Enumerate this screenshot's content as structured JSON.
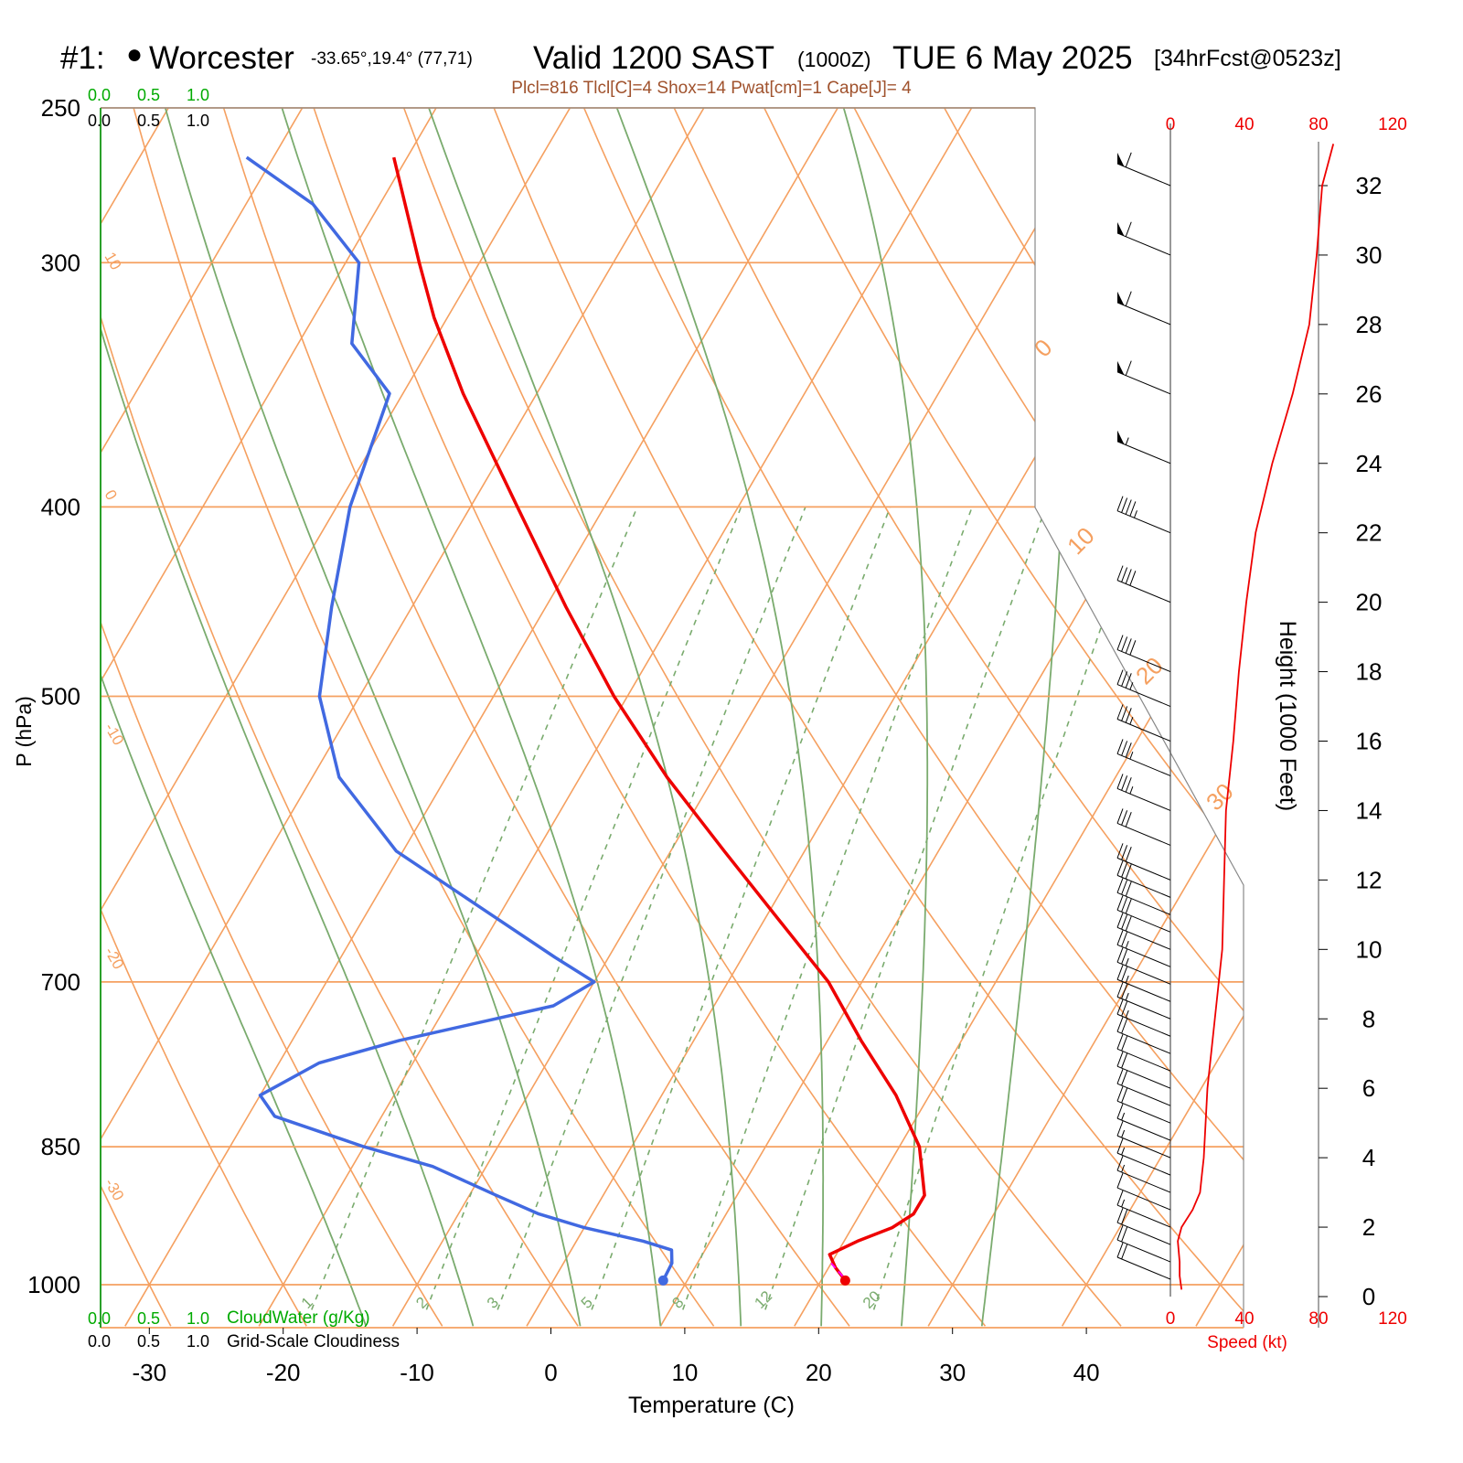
{
  "header": {
    "station_number": "#1:",
    "station_name": "Worcester",
    "coords": "-33.65°,19.4° (77,71)",
    "valid_label": "Valid 1200 SAST",
    "utc": "(1000Z)",
    "date": "TUE 6 May 2025",
    "forecast": "[34hrFcst@0523z]",
    "indices": "Plcl=816 Tlcl[C]=4 Shox=14 Pwat[cm]=1 Cape[J]= 4"
  },
  "colors": {
    "temperature": "#ee0000",
    "dewpoint": "#4169e1",
    "isotherm": "#f5a060",
    "dry_adiabat": "#f5a060",
    "moist_adiabat": "#7aab6e",
    "mixing_ratio": "#7aab6e",
    "cloudwater": "#00aa00",
    "indices_text": "#a0522d",
    "parcel": "#ff00ff",
    "wind_speed": "#ee0000"
  },
  "chart_data": {
    "type": "line",
    "title": "",
    "xlabel": "Temperature (C)",
    "ylabel": "P (hPa)",
    "y2label": "Height (1000 Feet)",
    "xlim": [
      -34,
      48
    ],
    "ylim": [
      1030,
      250
    ],
    "pressure_labels": [
      "250",
      "300",
      "400",
      "500",
      "700",
      "850",
      "1000"
    ],
    "pressure_levels": [
      250,
      300,
      400,
      500,
      700,
      850,
      1000
    ],
    "temperature_ticks": [
      "-30",
      "-20",
      "-10",
      "0",
      "10",
      "20",
      "30",
      "40"
    ],
    "temperature_tick_values": [
      -30,
      -20,
      -10,
      0,
      10,
      20,
      30,
      40
    ],
    "height_ticks": [
      "0",
      "2",
      "4",
      "6",
      "8",
      "10",
      "12",
      "14",
      "16",
      "18",
      "20",
      "22",
      "24",
      "26",
      "28",
      "30",
      "32"
    ],
    "isotherm_labels": [
      "10",
      "0",
      "-10",
      "-20",
      "-30"
    ],
    "dry_adiabat_labels": [
      "0",
      "10",
      "20",
      "30"
    ],
    "mixing_ratio_labels": [
      "1",
      "2",
      "3",
      "5",
      "8",
      "12",
      "20"
    ],
    "mixing_ratio_values": [
      1,
      2,
      3,
      5,
      8,
      12,
      20
    ],
    "series": [
      {
        "name": "Temperature",
        "pressure": [
          995,
          980,
          965,
          950,
          935,
          920,
          900,
          850,
          800,
          750,
          700,
          650,
          600,
          550,
          500,
          450,
          400,
          350,
          320,
          300,
          265
        ],
        "values": [
          21.8,
          20.5,
          19.5,
          21.0,
          23.0,
          24.0,
          24.0,
          21.5,
          17.5,
          12.5,
          7.5,
          1.0,
          -6.0,
          -13.5,
          -21.0,
          -28.5,
          -36.5,
          -45.5,
          -51.0,
          -54.5,
          -61.0
        ]
      },
      {
        "name": "Dewpoint",
        "pressure": [
          995,
          975,
          960,
          950,
          935,
          920,
          900,
          870,
          850,
          820,
          800,
          770,
          750,
          720,
          700,
          680,
          640,
          600,
          550,
          500,
          450,
          400,
          350,
          330,
          300,
          280,
          265
        ],
        "values": [
          8.2,
          8.1,
          7.5,
          5.0,
          0.0,
          -4.0,
          -8.0,
          -14.0,
          -20.0,
          -28.0,
          -30.0,
          -27.0,
          -22.0,
          -12.0,
          -10.0,
          -14.0,
          -22.0,
          -30.5,
          -38.0,
          -43.0,
          -46.0,
          -49.0,
          -51.0,
          -56.0,
          -59.0,
          -65.0,
          -72.0
        ]
      },
      {
        "name": "Wind Speed (kt)",
        "height_kft": [
          0.2,
          0.6,
          1.0,
          1.6,
          2.0,
          2.5,
          3.0,
          3.5,
          4.0,
          6.0,
          8.0,
          10.0,
          12.0,
          14.0,
          16.0,
          18.0,
          20.0,
          22.0,
          24.0,
          26.0,
          28.0,
          30.0,
          32.0,
          33.2
        ],
        "values": [
          6,
          5,
          5,
          4,
          6,
          12,
          16,
          17,
          18,
          20,
          24,
          28,
          29,
          30,
          34,
          37,
          41,
          46,
          55,
          66,
          75,
          79,
          82,
          88
        ]
      }
    ],
    "wind_scale": {
      "ticks": [
        "0",
        "40",
        "80",
        "120"
      ],
      "tick_values": [
        0,
        40,
        80,
        120
      ],
      "label": "Speed (kt)"
    },
    "cloud_scale": {
      "cloudwater_ticks": [
        "0.0",
        "0.5",
        "1.0"
      ],
      "cloudiness_ticks": [
        "0.0",
        "0.5",
        "1.0"
      ],
      "cloudwater_label": "CloudWater (g/Kg)",
      "cloudiness_label": "Grid-Scale Cloudiness"
    },
    "wind_barbs": {
      "height_kft": [
        0.5,
        1.0,
        1.5,
        2.0,
        2.5,
        3.0,
        3.5,
        4.0,
        4.5,
        5.0,
        5.5,
        6.0,
        6.5,
        7.0,
        7.5,
        8.0,
        8.5,
        9.0,
        9.5,
        10.0,
        10.5,
        11.0,
        11.5,
        12.0,
        13.0,
        14.0,
        15.0,
        16.0,
        17.0,
        18.0,
        20.0,
        22.0,
        24.0,
        26.0,
        28.0,
        30.0,
        32.0
      ],
      "speed_kt": [
        22,
        20,
        18,
        14,
        12,
        15,
        16,
        17,
        17,
        18,
        19,
        20,
        21,
        22,
        23,
        24,
        25,
        26,
        27,
        28,
        28,
        29,
        29,
        30,
        31,
        33,
        35,
        36,
        37,
        38,
        41,
        46,
        55,
        60,
        62,
        62,
        62
      ]
    }
  }
}
